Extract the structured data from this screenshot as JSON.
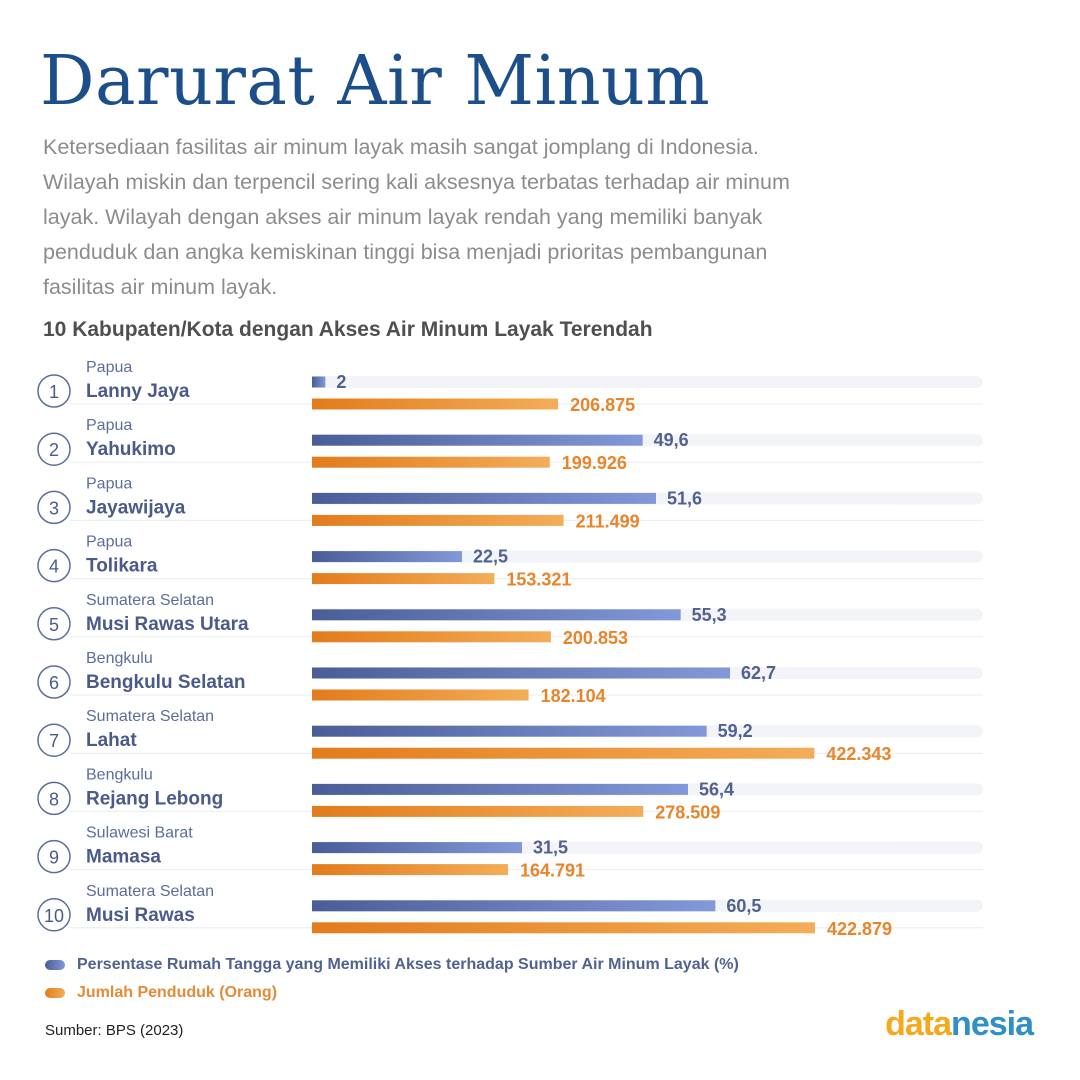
{
  "title": "Darurat Air Minum",
  "description": "Ketersediaan fasilitas air minum layak masih sangat jomplang di Indonesia.\nWilayah miskin dan terpencil sering kali aksesnya terbatas  terhadap air minum\nlayak. Wilayah dengan akses air minum layak rendah yang memiliki banyak\npenduduk dan angka kemiskinan tinggi bisa menjadi prioritas pembangunan\nfasilitas air minum layak.",
  "chart_data": {
    "type": "bar",
    "orientation": "horizontal",
    "title": "10 Kabupaten/Kota dengan Akses Air Minum Layak Terendah",
    "ranks": [
      "1",
      "2",
      "3",
      "4",
      "5",
      "6",
      "7",
      "8",
      "9",
      "10"
    ],
    "provinces": [
      "Papua",
      "Papua",
      "Papua",
      "Papua",
      "Sumatera Selatan",
      "Bengkulu",
      "Sumatera Selatan",
      "Bengkulu",
      "Sulawesi Barat",
      "Sumatera Selatan"
    ],
    "categories": [
      "Lanny Jaya",
      "Yahukimo",
      "Jayawijaya",
      "Tolikara",
      "Musi Rawas Utara",
      "Bengkulu Selatan",
      "Lahat",
      "Rejang Lebong",
      "Mamasa",
      "Musi Rawas"
    ],
    "series": [
      {
        "name": "Persentase Rumah Tangga yang Memiliki Akses terhadap Sumber Air Minum Layak (%)",
        "color": "#5b6fae",
        "values": [
          2,
          49.6,
          51.6,
          22.5,
          55.3,
          62.7,
          59.2,
          56.4,
          31.5,
          60.5
        ],
        "labels": [
          "2",
          "49,6",
          "51,6",
          "22,5",
          "55,3",
          "62,7",
          "59,2",
          "56,4",
          "31,5",
          "60,5"
        ],
        "max": 100
      },
      {
        "name": "Jumlah Penduduk (Orang)",
        "color": "#e8852a",
        "values": [
          206875,
          199926,
          211499,
          153321,
          200853,
          182104,
          422343,
          278509,
          164791,
          422879
        ],
        "labels": [
          "206.875",
          "199.926",
          "211.499",
          "153.321",
          "200.853",
          "182.104",
          "422.343",
          "278.509",
          "164.791",
          "422.879"
        ],
        "max": 422879
      }
    ],
    "legend": "bottom-left"
  },
  "source": "Sumber: BPS (2023)",
  "logo": {
    "part1": "data",
    "part2": "nesia"
  }
}
